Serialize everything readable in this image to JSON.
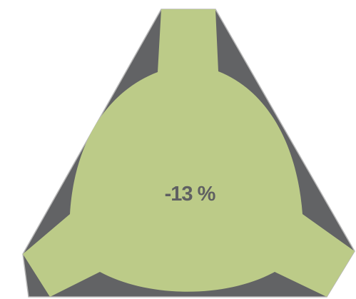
{
  "value_label": "-13 %",
  "colors": {
    "triangle_fill": "#626365",
    "triangle_edge": "#b8b8b8",
    "shape_fill": "#bccb88",
    "label_text": "#5f6062"
  }
}
